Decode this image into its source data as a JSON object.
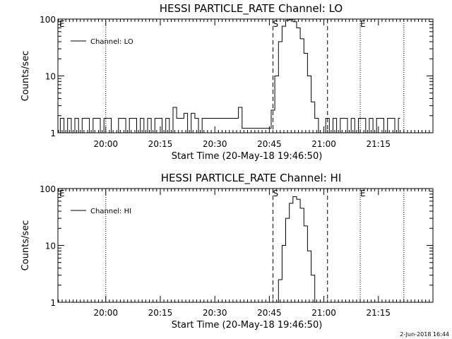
{
  "chart_data": [
    {
      "type": "line",
      "title": "HESSI PARTICLE_RATE Channel: LO",
      "xlabel": "Start Time (20-May-18 19:46:50)",
      "ylabel": "Counts/sec",
      "yscale": "log",
      "ylim": [
        1,
        100
      ],
      "xlim": [
        "19:46:50",
        "21:30:00"
      ],
      "yticks": [
        "1",
        "10",
        "100"
      ],
      "xticks": [
        "20:00",
        "20:15",
        "20:30",
        "20:45",
        "21:00",
        "21:15"
      ],
      "legend": {
        "label": "Channel: LO",
        "position": "upper-left"
      },
      "dotted_lines": [
        "20:00",
        "21:10",
        "21:22"
      ],
      "dashed_lines": [
        "20:46",
        "21:01"
      ],
      "markers": [
        {
          "label": "E",
          "x": "19:47"
        },
        {
          "label": "S",
          "x": "20:46"
        },
        {
          "label": "E",
          "x": "21:10"
        }
      ],
      "series": [
        {
          "x": [
            "19:47",
            "19:48",
            "19:49",
            "19:50",
            "19:51",
            "19:52",
            "19:53",
            "19:54",
            "19:55",
            "19:56",
            "19:57",
            "19:58",
            "19:59",
            "20:00",
            "20:01",
            "20:02",
            "20:03",
            "20:04",
            "20:05",
            "20:06",
            "20:07",
            "20:08",
            "20:09",
            "20:10",
            "20:11",
            "20:12",
            "20:13",
            "20:14",
            "20:15",
            "20:16",
            "20:17",
            "20:18",
            "20:19",
            "20:20",
            "20:21",
            "20:22",
            "20:23",
            "20:24",
            "20:25",
            "20:26",
            "20:27",
            "20:28",
            "20:29",
            "20:30",
            "20:31",
            "20:32",
            "20:33",
            "20:34",
            "20:35",
            "20:36",
            "20:37",
            "20:38",
            "20:39",
            "20:40",
            "20:41",
            "20:42",
            "20:43",
            "20:44",
            "20:45",
            "20:46",
            "20:47",
            "20:48",
            "20:49",
            "20:50",
            "20:51",
            "20:52",
            "20:53",
            "20:54",
            "20:55",
            "20:56",
            "20:57",
            "20:58",
            "20:59",
            "21:00",
            "21:01",
            "21:02",
            "21:03",
            "21:04",
            "21:05",
            "21:06",
            "21:07",
            "21:08",
            "21:09",
            "21:10",
            "21:11",
            "21:12",
            "21:13",
            "21:14",
            "21:15",
            "21:16",
            "21:17",
            "21:18",
            "21:19",
            "21:20",
            "21:21"
          ],
          "y": [
            1,
            1.8,
            1,
            1.8,
            1,
            1.8,
            1,
            1.8,
            1.8,
            1,
            1.8,
            1.8,
            1,
            1.8,
            1.8,
            1,
            1,
            1.8,
            1.8,
            1,
            1.8,
            1.8,
            1,
            1.8,
            1,
            1.8,
            1,
            1.8,
            1.8,
            1,
            1.8,
            1,
            2.8,
            1.8,
            1.8,
            2.2,
            1,
            2.2,
            1.8,
            1,
            1.8,
            1.8,
            1.8,
            1.8,
            1.8,
            1.8,
            1.8,
            1.8,
            1.8,
            1.8,
            2.8,
            1.2,
            1.2,
            1.2,
            1.2,
            1.2,
            1.2,
            1.2,
            1.2,
            2.5,
            10,
            40,
            75,
            95,
            98,
            90,
            70,
            45,
            25,
            10,
            3.5,
            1.8,
            1,
            1,
            1.8,
            1,
            1.8,
            1,
            1.8,
            1.8,
            1,
            1.8,
            1,
            1.8,
            1.8,
            1,
            1.8,
            1,
            1.8,
            1.8,
            1,
            1.8,
            1.8,
            1,
            1.8
          ]
        }
      ]
    },
    {
      "type": "line",
      "title": "HESSI PARTICLE_RATE Channel: HI",
      "xlabel": "Start Time (20-May-18 19:46:50)",
      "ylabel": "Counts/sec",
      "yscale": "log",
      "ylim": [
        1,
        100
      ],
      "xlim": [
        "19:46:50",
        "21:30:00"
      ],
      "yticks": [
        "1",
        "10",
        "100"
      ],
      "xticks": [
        "20:00",
        "20:15",
        "20:30",
        "20:45",
        "21:00",
        "21:15"
      ],
      "legend": {
        "label": "Channel: HI",
        "position": "upper-left"
      },
      "dotted_lines": [
        "20:00",
        "21:10",
        "21:22"
      ],
      "dashed_lines": [
        "20:46",
        "21:01"
      ],
      "markers": [
        {
          "label": "E",
          "x": "19:47"
        },
        {
          "label": "S",
          "x": "20:46"
        },
        {
          "label": "E",
          "x": "21:10"
        }
      ],
      "series": [
        {
          "x": [
            "20:47",
            "20:48",
            "20:49",
            "20:50",
            "20:51",
            "20:52",
            "20:53",
            "20:54",
            "20:55",
            "20:56",
            "20:57",
            "20:58"
          ],
          "y": [
            1,
            2.5,
            10,
            30,
            55,
            72,
            65,
            45,
            22,
            8,
            3,
            1
          ]
        }
      ]
    }
  ],
  "timestamp": "2-Jun-2018 16:44"
}
